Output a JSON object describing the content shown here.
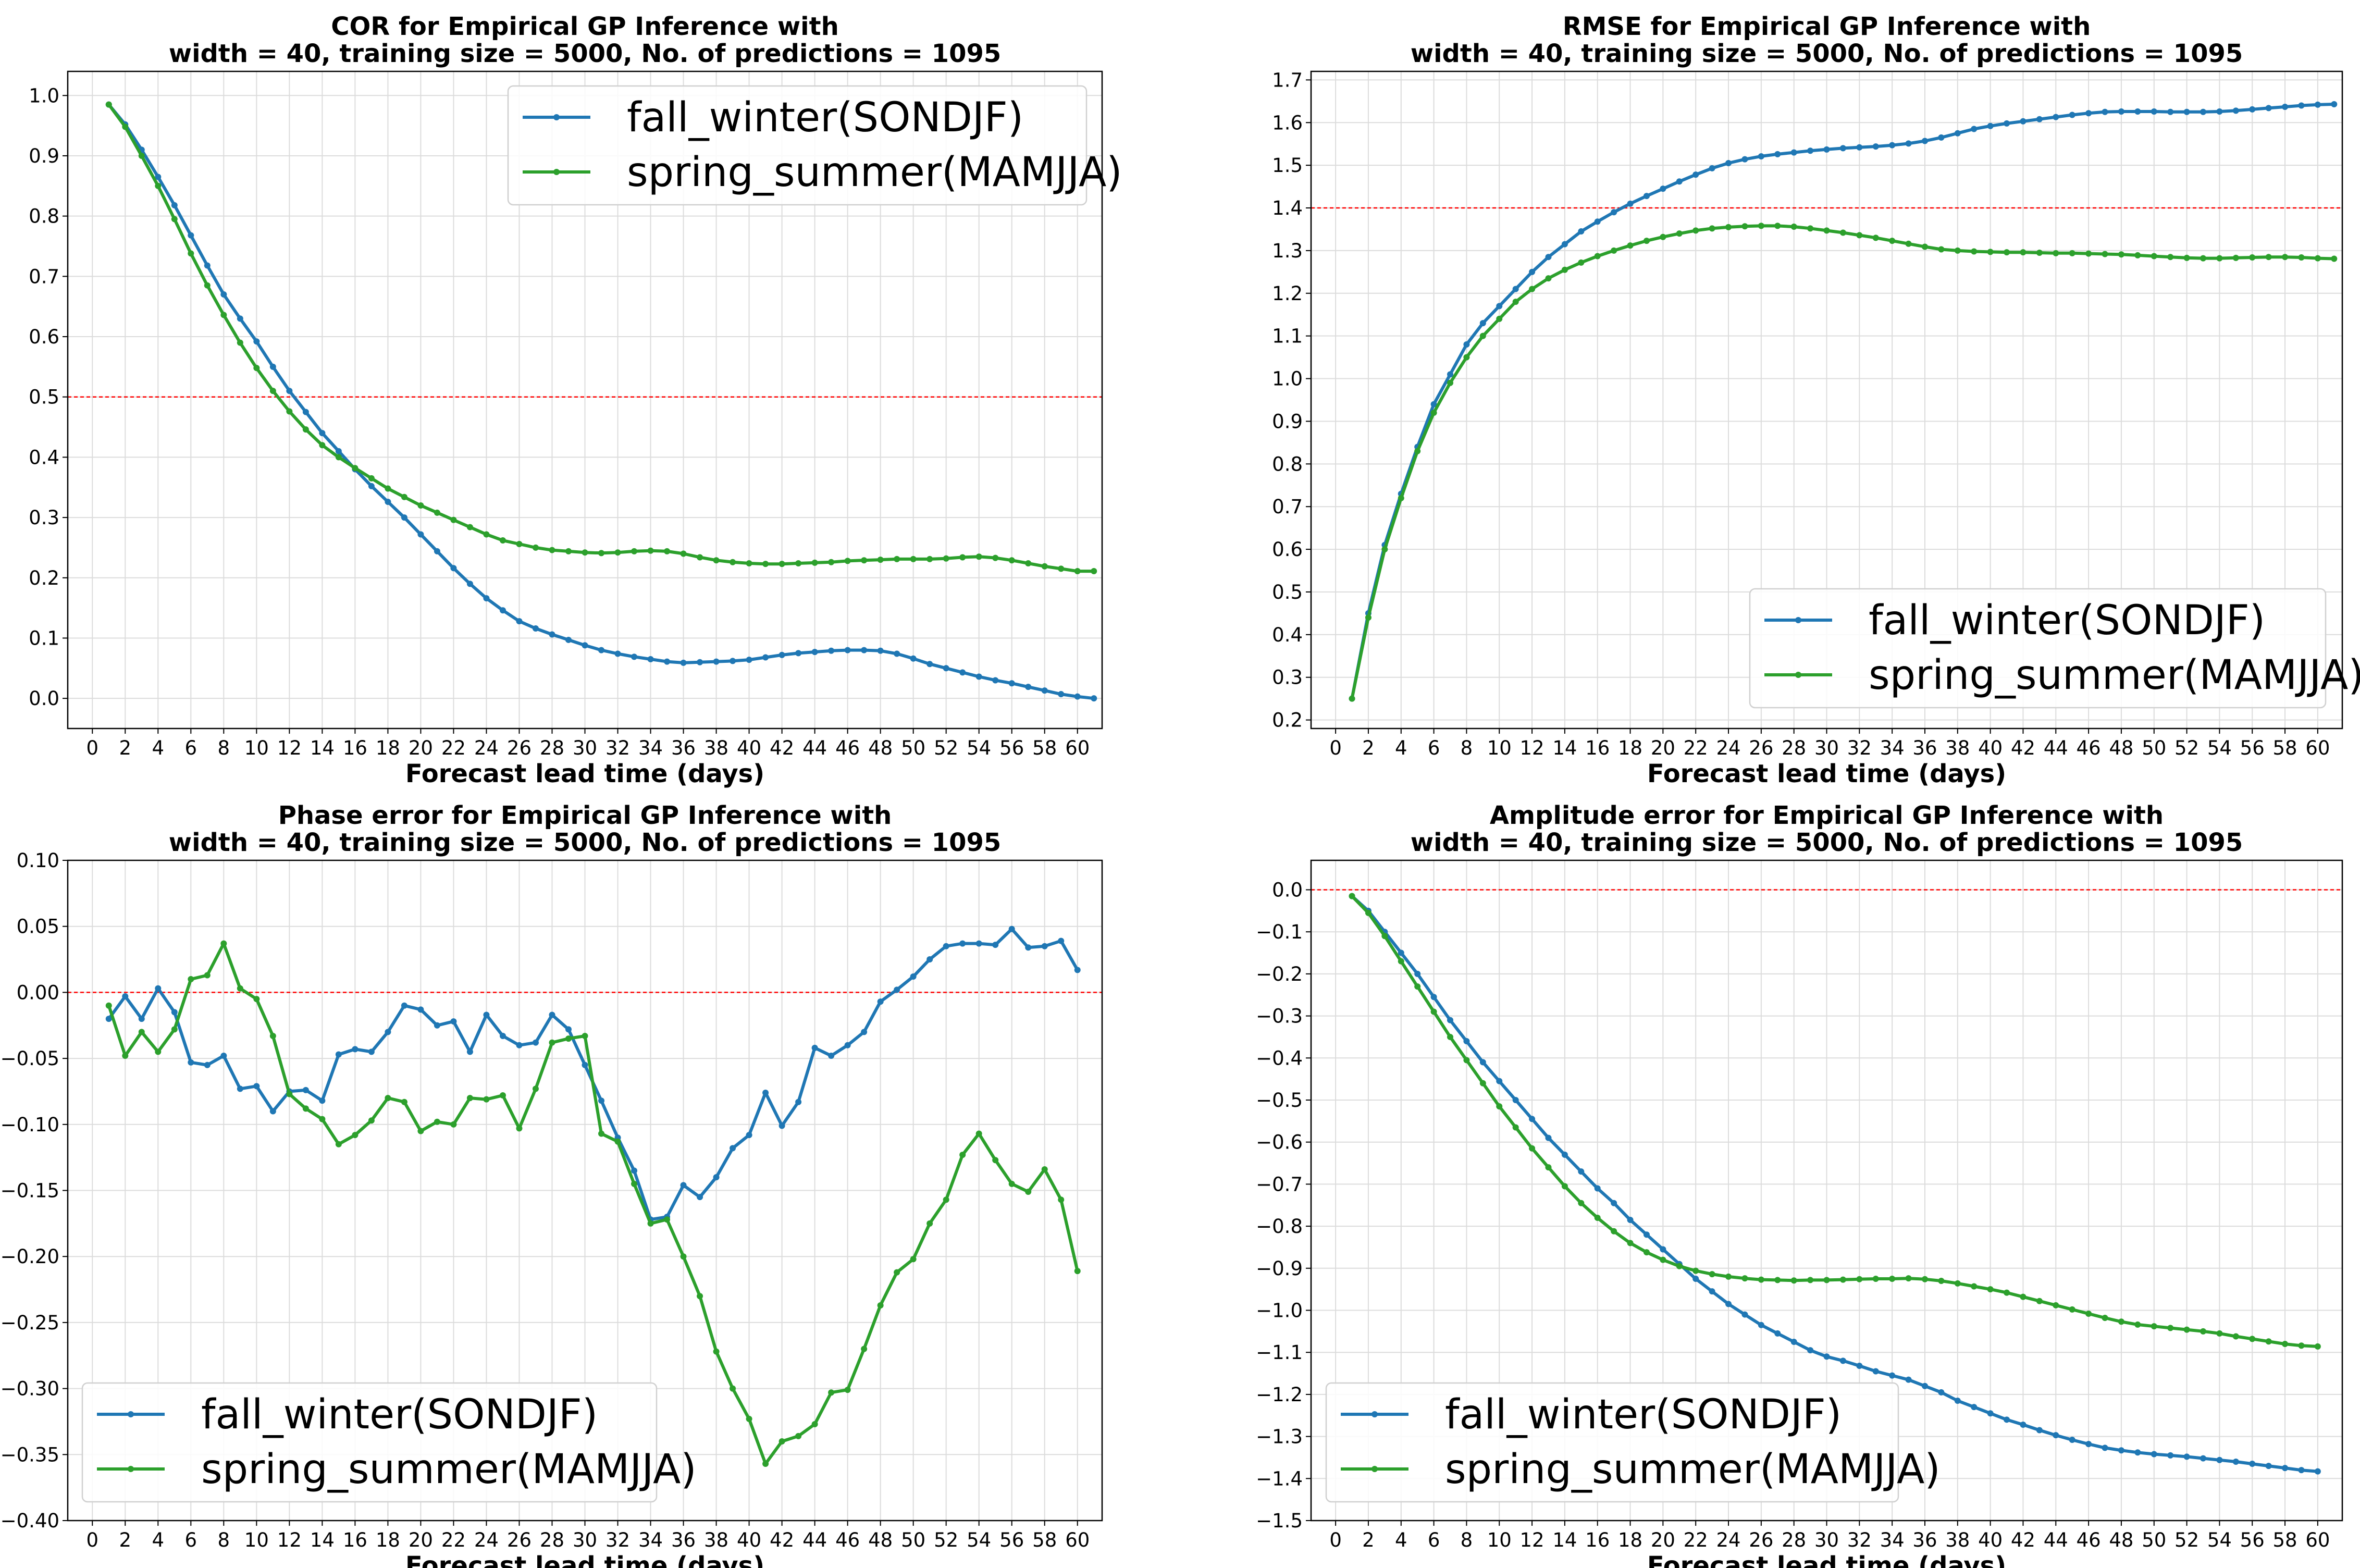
{
  "chart_data": [
    {
      "type": "line",
      "title_line1": "COR for Empirical GP Inference with",
      "title_line2": "width = 40, training size = 5000, No. of predictions = 1095",
      "xlabel": "Forecast lead time (days)",
      "ylabel": "",
      "xlim": [
        -1.5,
        61.5
      ],
      "ylim": [
        -0.05,
        1.04
      ],
      "xticks": [
        0,
        2,
        4,
        6,
        8,
        10,
        12,
        14,
        16,
        18,
        20,
        22,
        24,
        26,
        28,
        30,
        32,
        34,
        36,
        38,
        40,
        42,
        44,
        46,
        48,
        50,
        52,
        54,
        56,
        58,
        60
      ],
      "yticks": [
        0.0,
        0.1,
        0.2,
        0.3,
        0.4,
        0.5,
        0.6,
        0.7,
        0.8,
        0.9,
        1.0
      ],
      "ytick_labels": [
        "0.0",
        "0.1",
        "0.2",
        "0.3",
        "0.4",
        "0.5",
        "0.6",
        "0.7",
        "0.8",
        "0.9",
        "1.0"
      ],
      "reference_line": 0.5,
      "legend": "top-right",
      "x_start": 1,
      "series": [
        {
          "name": "fall_winter(SONDJF)",
          "color": "#1f77b4",
          "values": [
            0.985,
            0.952,
            0.91,
            0.865,
            0.818,
            0.768,
            0.718,
            0.67,
            0.63,
            0.592,
            0.55,
            0.51,
            0.475,
            0.44,
            0.41,
            0.38,
            0.352,
            0.326,
            0.3,
            0.272,
            0.244,
            0.216,
            0.19,
            0.166,
            0.146,
            0.128,
            0.116,
            0.106,
            0.097,
            0.088,
            0.08,
            0.074,
            0.069,
            0.065,
            0.061,
            0.059,
            0.06,
            0.061,
            0.062,
            0.064,
            0.068,
            0.072,
            0.075,
            0.077,
            0.079,
            0.08,
            0.08,
            0.079,
            0.074,
            0.066,
            0.057,
            0.05,
            0.043,
            0.036,
            0.03,
            0.025,
            0.019,
            0.013,
            0.007,
            0.003,
            0.0
          ]
        },
        {
          "name": "spring_summer(MAMJJA)",
          "color": "#2ca02c",
          "values": [
            0.985,
            0.948,
            0.9,
            0.85,
            0.795,
            0.738,
            0.685,
            0.636,
            0.59,
            0.548,
            0.51,
            0.476,
            0.446,
            0.42,
            0.4,
            0.382,
            0.365,
            0.348,
            0.334,
            0.32,
            0.308,
            0.296,
            0.284,
            0.272,
            0.262,
            0.256,
            0.25,
            0.246,
            0.244,
            0.242,
            0.241,
            0.242,
            0.244,
            0.245,
            0.244,
            0.24,
            0.234,
            0.229,
            0.226,
            0.224,
            0.223,
            0.223,
            0.224,
            0.225,
            0.226,
            0.228,
            0.229,
            0.23,
            0.231,
            0.231,
            0.231,
            0.232,
            0.234,
            0.235,
            0.233,
            0.229,
            0.224,
            0.219,
            0.215,
            0.211,
            0.211
          ]
        }
      ]
    },
    {
      "type": "line",
      "title_line1": "RMSE for Empirical GP Inference with",
      "title_line2": "width = 40, training size = 5000, No. of predictions = 1095",
      "xlabel": "Forecast lead time (days)",
      "ylabel": "",
      "xlim": [
        -1.5,
        61.5
      ],
      "ylim": [
        0.18,
        1.72
      ],
      "xticks": [
        0,
        2,
        4,
        6,
        8,
        10,
        12,
        14,
        16,
        18,
        20,
        22,
        24,
        26,
        28,
        30,
        32,
        34,
        36,
        38,
        40,
        42,
        44,
        46,
        48,
        50,
        52,
        54,
        56,
        58,
        60
      ],
      "yticks": [
        0.2,
        0.3,
        0.4,
        0.5,
        0.6,
        0.7,
        0.8,
        0.9,
        1.0,
        1.1,
        1.2,
        1.3,
        1.4,
        1.5,
        1.6,
        1.7
      ],
      "ytick_labels": [
        "0.2",
        "0.3",
        "0.4",
        "0.5",
        "0.6",
        "0.7",
        "0.8",
        "0.9",
        "1.0",
        "1.1",
        "1.2",
        "1.3",
        "1.4",
        "1.5",
        "1.6",
        "1.7"
      ],
      "reference_line": 1.4,
      "legend": "lower-right",
      "x_start": 1,
      "series": [
        {
          "name": "fall_winter(SONDJF)",
          "color": "#1f77b4",
          "values": [
            0.25,
            0.45,
            0.61,
            0.73,
            0.84,
            0.94,
            1.01,
            1.08,
            1.13,
            1.17,
            1.21,
            1.25,
            1.285,
            1.315,
            1.345,
            1.368,
            1.39,
            1.41,
            1.428,
            1.445,
            1.462,
            1.478,
            1.493,
            1.505,
            1.514,
            1.521,
            1.526,
            1.53,
            1.534,
            1.537,
            1.54,
            1.542,
            1.544,
            1.547,
            1.551,
            1.557,
            1.565,
            1.575,
            1.585,
            1.592,
            1.598,
            1.603,
            1.608,
            1.613,
            1.618,
            1.622,
            1.625,
            1.626,
            1.626,
            1.626,
            1.625,
            1.625,
            1.625,
            1.626,
            1.628,
            1.631,
            1.634,
            1.637,
            1.64,
            1.642,
            1.643
          ]
        },
        {
          "name": "spring_summer(MAMJJA)",
          "color": "#2ca02c",
          "values": [
            0.25,
            0.44,
            0.6,
            0.72,
            0.83,
            0.92,
            0.99,
            1.05,
            1.1,
            1.14,
            1.18,
            1.21,
            1.235,
            1.255,
            1.272,
            1.287,
            1.3,
            1.312,
            1.323,
            1.332,
            1.34,
            1.347,
            1.352,
            1.355,
            1.357,
            1.358,
            1.358,
            1.356,
            1.352,
            1.347,
            1.342,
            1.336,
            1.33,
            1.323,
            1.316,
            1.309,
            1.303,
            1.3,
            1.298,
            1.297,
            1.296,
            1.296,
            1.295,
            1.294,
            1.294,
            1.293,
            1.292,
            1.291,
            1.289,
            1.287,
            1.285,
            1.283,
            1.282,
            1.282,
            1.283,
            1.284,
            1.285,
            1.285,
            1.284,
            1.282,
            1.281
          ]
        }
      ]
    },
    {
      "type": "line",
      "title_line1": "Phase error for Empirical GP Inference with",
      "title_line2": "width = 40, training size = 5000, No. of predictions = 1095",
      "xlabel": "Forecast lead time (days)",
      "ylabel": "",
      "xlim": [
        -1.5,
        61.5
      ],
      "ylim": [
        -0.4,
        0.1
      ],
      "xticks": [
        0,
        2,
        4,
        6,
        8,
        10,
        12,
        14,
        16,
        18,
        20,
        22,
        24,
        26,
        28,
        30,
        32,
        34,
        36,
        38,
        40,
        42,
        44,
        46,
        48,
        50,
        52,
        54,
        56,
        58,
        60
      ],
      "yticks": [
        -0.4,
        -0.35,
        -0.3,
        -0.25,
        -0.2,
        -0.15,
        -0.1,
        -0.05,
        0.0,
        0.05,
        0.1
      ],
      "ytick_labels": [
        "−0.40",
        "−0.35",
        "−0.30",
        "−0.25",
        "−0.20",
        "−0.15",
        "−0.10",
        "−0.05",
        "0.00",
        "0.05",
        "0.10"
      ],
      "reference_line": 0.0,
      "legend": "lower-left",
      "x_start": 1,
      "series": [
        {
          "name": "fall_winter(SONDJF)",
          "color": "#1f77b4",
          "values": [
            -0.02,
            -0.003,
            -0.02,
            0.003,
            -0.015,
            -0.053,
            -0.055,
            -0.048,
            -0.073,
            -0.071,
            -0.09,
            -0.075,
            -0.074,
            -0.082,
            -0.047,
            -0.043,
            -0.045,
            -0.03,
            -0.01,
            -0.013,
            -0.025,
            -0.022,
            -0.045,
            -0.017,
            -0.033,
            -0.04,
            -0.038,
            -0.017,
            -0.028,
            -0.055,
            -0.082,
            -0.11,
            -0.135,
            -0.172,
            -0.17,
            -0.146,
            -0.155,
            -0.14,
            -0.118,
            -0.108,
            -0.076,
            -0.101,
            -0.083,
            -0.042,
            -0.048,
            -0.04,
            -0.03,
            -0.007,
            0.002,
            0.012,
            0.025,
            0.035,
            0.037,
            0.037,
            0.036,
            0.048,
            0.034,
            0.035,
            0.039,
            0.017
          ]
        },
        {
          "name": "spring_summer(MAMJJA)",
          "color": "#2ca02c",
          "values": [
            -0.01,
            -0.048,
            -0.03,
            -0.045,
            -0.028,
            0.01,
            0.013,
            0.037,
            0.003,
            -0.005,
            -0.033,
            -0.077,
            -0.088,
            -0.096,
            -0.115,
            -0.108,
            -0.097,
            -0.08,
            -0.083,
            -0.105,
            -0.098,
            -0.1,
            -0.08,
            -0.081,
            -0.078,
            -0.103,
            -0.073,
            -0.038,
            -0.035,
            -0.033,
            -0.107,
            -0.113,
            -0.145,
            -0.175,
            -0.172,
            -0.2,
            -0.23,
            -0.272,
            -0.3,
            -0.323,
            -0.357,
            -0.34,
            -0.336,
            -0.327,
            -0.303,
            -0.301,
            -0.27,
            -0.237,
            -0.212,
            -0.202,
            -0.175,
            -0.157,
            -0.123,
            -0.107,
            -0.127,
            -0.145,
            -0.151,
            -0.134,
            -0.157,
            -0.211
          ]
        }
      ]
    },
    {
      "type": "line",
      "title_line1": "Amplitude error for Empirical GP Inference with",
      "title_line2": "width = 40, training size = 5000, No. of predictions = 1095",
      "xlabel": "Forecast lead time (days)",
      "ylabel": "",
      "xlim": [
        -1.5,
        61.5
      ],
      "ylim": [
        -1.5,
        0.07
      ],
      "xticks": [
        0,
        2,
        4,
        6,
        8,
        10,
        12,
        14,
        16,
        18,
        20,
        22,
        24,
        26,
        28,
        30,
        32,
        34,
        36,
        38,
        40,
        42,
        44,
        46,
        48,
        50,
        52,
        54,
        56,
        58,
        60
      ],
      "yticks": [
        -1.5,
        -1.4,
        -1.3,
        -1.2,
        -1.1,
        -1.0,
        -0.9,
        -0.8,
        -0.7,
        -0.6,
        -0.5,
        -0.4,
        -0.3,
        -0.2,
        -0.1,
        0.0
      ],
      "ytick_labels": [
        "−1.5",
        "−1.4",
        "−1.3",
        "−1.2",
        "−1.1",
        "−1.0",
        "−0.9",
        "−0.8",
        "−0.7",
        "−0.6",
        "−0.5",
        "−0.4",
        "−0.3",
        "−0.2",
        "−0.1",
        "0.0"
      ],
      "reference_line": 0.0,
      "legend": "lower-left",
      "x_start": 1,
      "series": [
        {
          "name": "fall_winter(SONDJF)",
          "color": "#1f77b4",
          "values": [
            -0.015,
            -0.05,
            -0.1,
            -0.15,
            -0.2,
            -0.255,
            -0.31,
            -0.36,
            -0.41,
            -0.455,
            -0.5,
            -0.545,
            -0.59,
            -0.63,
            -0.67,
            -0.71,
            -0.745,
            -0.785,
            -0.82,
            -0.855,
            -0.89,
            -0.925,
            -0.955,
            -0.985,
            -1.01,
            -1.035,
            -1.055,
            -1.075,
            -1.095,
            -1.11,
            -1.12,
            -1.132,
            -1.145,
            -1.155,
            -1.165,
            -1.18,
            -1.195,
            -1.215,
            -1.23,
            -1.245,
            -1.26,
            -1.272,
            -1.285,
            -1.297,
            -1.308,
            -1.318,
            -1.327,
            -1.333,
            -1.338,
            -1.342,
            -1.345,
            -1.348,
            -1.352,
            -1.356,
            -1.36,
            -1.365,
            -1.37,
            -1.375,
            -1.38,
            -1.383
          ]
        },
        {
          "name": "spring_summer(MAMJJA)",
          "color": "#2ca02c",
          "values": [
            -0.015,
            -0.055,
            -0.11,
            -0.17,
            -0.23,
            -0.29,
            -0.35,
            -0.405,
            -0.46,
            -0.515,
            -0.565,
            -0.615,
            -0.66,
            -0.705,
            -0.745,
            -0.78,
            -0.812,
            -0.84,
            -0.862,
            -0.88,
            -0.895,
            -0.906,
            -0.914,
            -0.92,
            -0.924,
            -0.927,
            -0.928,
            -0.929,
            -0.928,
            -0.928,
            -0.927,
            -0.926,
            -0.925,
            -0.925,
            -0.924,
            -0.926,
            -0.93,
            -0.936,
            -0.943,
            -0.95,
            -0.958,
            -0.968,
            -0.978,
            -0.988,
            -0.998,
            -1.008,
            -1.018,
            -1.027,
            -1.034,
            -1.038,
            -1.042,
            -1.046,
            -1.05,
            -1.055,
            -1.062,
            -1.068,
            -1.074,
            -1.08,
            -1.084,
            -1.086
          ]
        }
      ]
    }
  ]
}
